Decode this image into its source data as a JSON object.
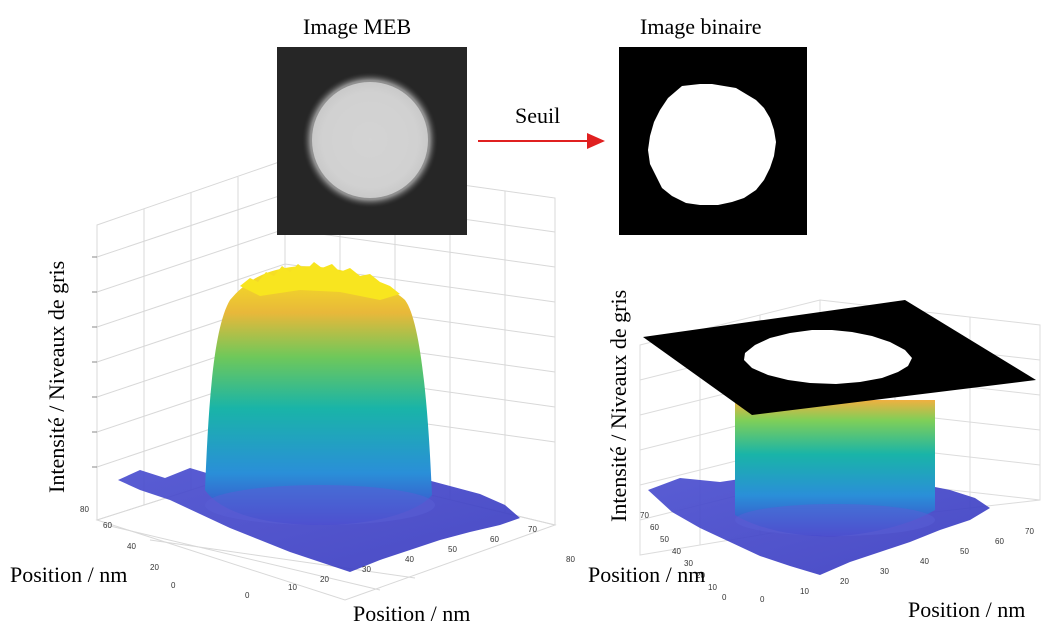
{
  "top": {
    "sem_title": "Image MEB",
    "bin_title": "Image binaire",
    "arrow_label": "Seuil",
    "arrow_color": "#e02020"
  },
  "left_plot": {
    "ylabel": "Intensité / Niveaux de gris",
    "xlabel_left": "Position / nm",
    "xlabel_bottom": "Position / nm",
    "left_axis_ticks": [
      "80",
      "60",
      "40",
      "20",
      "0"
    ],
    "bottom_axis_ticks": [
      "0",
      "10",
      "20",
      "30",
      "40",
      "50",
      "60",
      "70",
      "80"
    ]
  },
  "right_plot": {
    "ylabel": "Intensité / Niveaux de gris",
    "xlabel_left": "Position / nm",
    "xlabel_bottom": "Position / nm",
    "left_axis_ticks": [
      "0",
      "10",
      "20",
      "30",
      "40",
      "50",
      "60",
      "70"
    ],
    "bottom_axis_ticks": [
      "0",
      "10",
      "20",
      "30",
      "40",
      "50",
      "60",
      "70"
    ]
  },
  "colors": {
    "viridis_low": "#3b3fbe",
    "viridis_mid": "#19b4a8",
    "viridis_high": "#f6e41f",
    "grid": "#d8d8d8"
  }
}
